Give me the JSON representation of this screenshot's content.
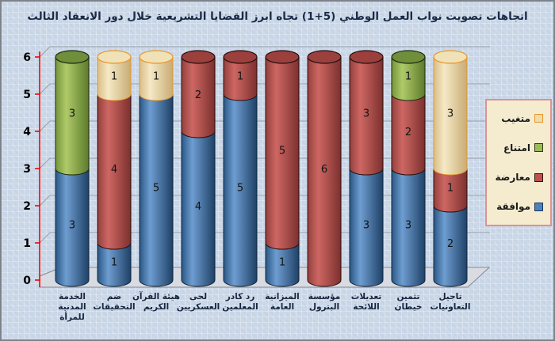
{
  "title": "اتجاهات تصويت نواب العمل الوطني (5+1) تجاه ابرز القضايا التشريعية خلال دور الانعقاد الثالث",
  "legend": {
    "items": [
      {
        "label": "متغيب",
        "color": "#F0DCA8",
        "border": "#E8962E"
      },
      {
        "label": "امتناع",
        "color": "#9BBB59",
        "border": "#2F3A17"
      },
      {
        "label": "معارضة",
        "color": "#C0504D",
        "border": "#2E1514"
      },
      {
        "label": "موافقة",
        "color": "#4F81BD",
        "border": "#17375D"
      }
    ]
  },
  "axis": {
    "yticks": [
      "0",
      "1",
      "2",
      "3",
      "4",
      "5",
      "6"
    ],
    "axis_color": "#FF0000",
    "grid_color": "#9AA0A8"
  },
  "chart_data": {
    "type": "bar",
    "stacked": true,
    "title": "اتجاهات تصويت نواب العمل الوطني (5+1) تجاه ابرز القضايا التشريعية خلال دور الانعقاد الثالث",
    "ylim": [
      0,
      6
    ],
    "grid": true,
    "legend_position": "right",
    "legend_order_top_to_bottom": [
      "متغيب",
      "امتناع",
      "معارضة",
      "موافقة"
    ],
    "categories": [
      "الخدمة\nالمدنية\nللمرأة",
      "ضم\nالتحقيقات",
      "هيئة القرآن\nالكريم",
      "لحى\nالعسكريين",
      "رد كادر\nالمعلمين",
      "الميزانية\nالعامة",
      "مؤسسة\nالبترول",
      "تعديلات\nاللائحة",
      "تثمين\nخيطان",
      "تاجيل\nالتعاونيات"
    ],
    "series": [
      {
        "name": "موافقة",
        "color": "#4F81BD",
        "stroke": "#10263F",
        "cap": "#2F5E8E",
        "gradient": [
          "#2A5784",
          "#6E9DD1",
          "#1E4166"
        ],
        "values": [
          3,
          1,
          5,
          4,
          5,
          1,
          0,
          3,
          3,
          2
        ]
      },
      {
        "name": "معارضة",
        "color": "#C0504D",
        "stroke": "#26100F",
        "cap": "#9C403D",
        "gradient": [
          "#93403D",
          "#CE6763",
          "#7C302E"
        ],
        "values": [
          0,
          4,
          0,
          2,
          1,
          5,
          6,
          3,
          2,
          1
        ]
      },
      {
        "name": "امتناع",
        "color": "#9BBB59",
        "stroke": "#20290E",
        "cap": "#6F8F3A",
        "gradient": [
          "#74953C",
          "#AFCB68",
          "#5C7A2C"
        ],
        "values": [
          3,
          0,
          0,
          0,
          0,
          0,
          0,
          0,
          1,
          0
        ]
      },
      {
        "name": "متغيب",
        "color": "#EBD8A6",
        "stroke": "#E8962E",
        "cap": "#F0E2B6",
        "gradient": [
          "#D8BD88",
          "#F5E9C6",
          "#C8AC74"
        ],
        "values": [
          0,
          1,
          1,
          0,
          0,
          0,
          0,
          0,
          0,
          3
        ]
      }
    ]
  }
}
